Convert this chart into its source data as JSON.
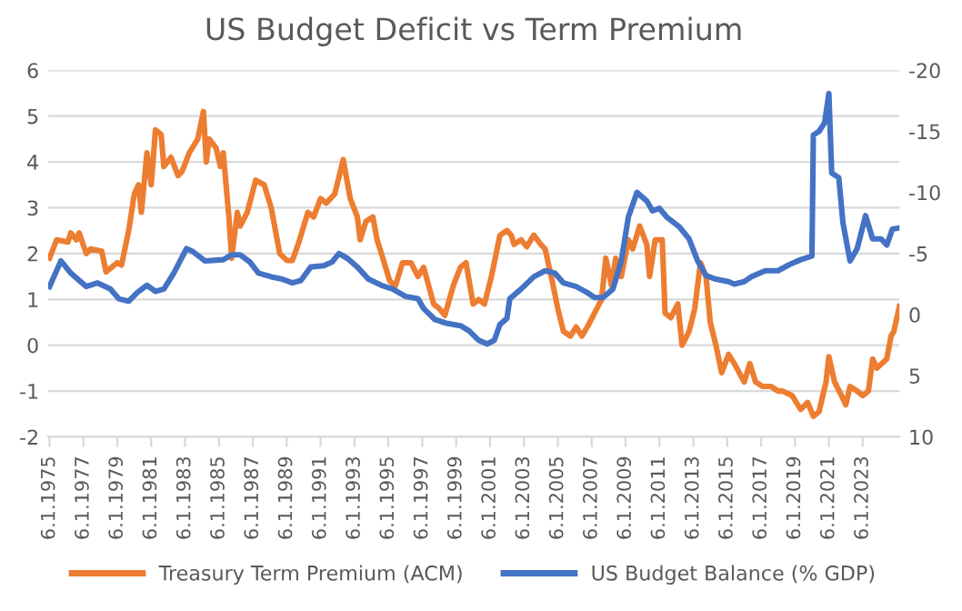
{
  "chart_data": {
    "type": "line",
    "title": "US Budget Deficit vs Term Premium",
    "series": [
      {
        "name": "Treasury Term Premium (ACM)",
        "color": "#ed7d31",
        "x": [
          "1975-06",
          "1975-11",
          "1976-07",
          "1976-09",
          "1977-01",
          "1977-03",
          "1977-08",
          "1977-11",
          "1978-07",
          "1978-10",
          "1979-06",
          "1979-09",
          "1980-02",
          "1980-06",
          "1980-09",
          "1980-11",
          "1981-03",
          "1981-06",
          "1981-09",
          "1982-01",
          "1982-03",
          "1982-08",
          "1983-01",
          "1983-04",
          "1983-09",
          "1984-03",
          "1984-07",
          "1984-09",
          "1984-11",
          "1985-04",
          "1985-07",
          "1985-09",
          "1986-01",
          "1986-03",
          "1986-07",
          "1986-09",
          "1987-02",
          "1987-08",
          "1988-02",
          "1988-07",
          "1989-01",
          "1989-06",
          "1989-10",
          "1990-02",
          "1990-09",
          "1991-01",
          "1991-06",
          "1991-10",
          "1992-04",
          "1992-08",
          "1992-10",
          "1993-03",
          "1993-08",
          "1993-10",
          "1994-02",
          "1994-07",
          "1994-10",
          "1995-02",
          "1995-07",
          "1995-11",
          "1996-04",
          "1996-10",
          "1997-03",
          "1997-07",
          "1998-02",
          "1998-06",
          "1998-10",
          "1999-04",
          "1999-09",
          "2000-01",
          "2000-06",
          "2000-10",
          "2001-02",
          "2001-07",
          "2002-01",
          "2002-06",
          "2002-09",
          "2002-11",
          "2003-04",
          "2003-08",
          "2004-01",
          "2004-06",
          "2004-09",
          "2005-02",
          "2005-06",
          "2005-10",
          "2006-03",
          "2006-07",
          "2006-11",
          "2007-03",
          "2007-08",
          "2008-01",
          "2008-04",
          "2008-08",
          "2008-11",
          "2009-03",
          "2009-08",
          "2009-11",
          "2010-04",
          "2010-09",
          "2010-11",
          "2011-03",
          "2011-08",
          "2011-10",
          "2012-02",
          "2012-07",
          "2012-10",
          "2013-03",
          "2013-07",
          "2013-11",
          "2014-03",
          "2014-06",
          "2014-10",
          "2015-02",
          "2015-07",
          "2015-11",
          "2016-06",
          "2016-10",
          "2017-02",
          "2017-07",
          "2018-01",
          "2018-06",
          "2018-09",
          "2019-04",
          "2019-10",
          "2020-03",
          "2020-07",
          "2020-11",
          "2021-04",
          "2021-06",
          "2021-10",
          "2022-03",
          "2022-06",
          "2022-09",
          "2023-02",
          "2023-06",
          "2023-10",
          "2024-01",
          "2024-04",
          "2024-11",
          "2025-02",
          "2025-04",
          "2025-08"
        ],
        "values": [
          1.9,
          2.3,
          2.25,
          2.45,
          2.3,
          2.45,
          2.0,
          2.1,
          2.05,
          1.6,
          1.8,
          1.75,
          2.5,
          3.3,
          3.5,
          2.9,
          4.2,
          3.5,
          4.7,
          4.6,
          3.9,
          4.1,
          3.7,
          3.8,
          4.2,
          4.5,
          5.1,
          4.0,
          4.5,
          4.3,
          3.9,
          4.2,
          2.8,
          1.9,
          2.9,
          2.6,
          2.9,
          3.6,
          3.5,
          3.0,
          2.0,
          1.85,
          1.85,
          2.2,
          2.9,
          2.8,
          3.2,
          3.1,
          3.3,
          3.8,
          4.05,
          3.2,
          2.8,
          2.3,
          2.7,
          2.8,
          2.3,
          1.9,
          1.4,
          1.3,
          1.8,
          1.8,
          1.5,
          1.7,
          0.9,
          0.8,
          0.65,
          1.3,
          1.7,
          1.8,
          0.9,
          1.0,
          0.9,
          1.5,
          2.4,
          2.5,
          2.4,
          2.2,
          2.3,
          2.15,
          2.4,
          2.2,
          2.1,
          1.4,
          0.8,
          0.3,
          0.2,
          0.4,
          0.2,
          0.4,
          0.7,
          1.0,
          1.9,
          1.3,
          1.9,
          1.5,
          2.3,
          2.1,
          2.6,
          2.2,
          1.5,
          2.3,
          2.3,
          0.7,
          0.6,
          0.9,
          0.0,
          0.3,
          0.8,
          1.8,
          1.5,
          0.5,
          0.0,
          -0.6,
          -0.2,
          -0.4,
          -0.8,
          -0.4,
          -0.8,
          -0.9,
          -0.9,
          -1.0,
          -1.0,
          -1.1,
          -1.4,
          -1.25,
          -1.55,
          -1.45,
          -0.8,
          -0.25,
          -0.8,
          -1.1,
          -1.3,
          -0.9,
          -1.0,
          -1.1,
          -1.0,
          -0.3,
          -0.5,
          -0.3,
          0.2,
          0.3,
          0.85
        ]
      },
      {
        "name": "US Budget Balance (% GDP)",
        "color": "#4472c4",
        "axis": "y2",
        "x": [
          "1975-06",
          "1976-02",
          "1976-09",
          "1977-08",
          "1978-04",
          "1979-01",
          "1979-07",
          "1980-02",
          "1980-08",
          "1981-03",
          "1981-09",
          "1982-03",
          "1982-10",
          "1983-07",
          "1983-11",
          "1984-08",
          "1985-09",
          "1986-03",
          "1986-09",
          "1987-04",
          "1987-10",
          "1988-07",
          "1989-03",
          "1989-10",
          "1990-04",
          "1990-11",
          "1991-08",
          "1992-02",
          "1992-07",
          "1993-01",
          "1993-08",
          "1994-04",
          "1995-01",
          "1995-09",
          "1996-06",
          "1997-03",
          "1997-07",
          "1998-03",
          "1998-11",
          "1999-09",
          "2000-03",
          "2000-10",
          "2001-04",
          "2001-09",
          "2002-01",
          "2002-06",
          "2002-08",
          "2003-04",
          "2004-01",
          "2004-09",
          "2005-04",
          "2005-10",
          "2006-07",
          "2007-03",
          "2007-08",
          "2008-02",
          "2008-09",
          "2009-03",
          "2009-08",
          "2010-02",
          "2010-09",
          "2011-01",
          "2011-06",
          "2011-11",
          "2012-08",
          "2013-03",
          "2013-09",
          "2014-03",
          "2014-10",
          "2015-07",
          "2015-11",
          "2016-06",
          "2016-11",
          "2017-09",
          "2018-06",
          "2019-02",
          "2019-10",
          "2020-06",
          "2020-07",
          "2020-11",
          "2021-03",
          "2021-06",
          "2021-08",
          "2022-01",
          "2022-04",
          "2022-09",
          "2023-02",
          "2023-08",
          "2024-01",
          "2024-07",
          "2024-11",
          "2025-03",
          "2025-08"
        ],
        "values": [
          -2.3,
          -4.4,
          -3.4,
          -2.3,
          -2.6,
          -2.1,
          -1.3,
          -1.1,
          -1.8,
          -2.4,
          -1.9,
          -2.1,
          -3.4,
          -5.4,
          -5.2,
          -4.4,
          -4.5,
          -4.9,
          -4.9,
          -4.3,
          -3.4,
          -3.1,
          -2.9,
          -2.6,
          -2.8,
          -3.9,
          -4.0,
          -4.3,
          -5.0,
          -4.6,
          -3.9,
          -2.9,
          -2.4,
          -2.1,
          -1.5,
          -1.3,
          -0.5,
          0.4,
          0.7,
          0.9,
          1.3,
          2.1,
          2.4,
          2.1,
          0.8,
          0.3,
          -1.3,
          -2.1,
          -3.1,
          -3.6,
          -3.4,
          -2.6,
          -2.3,
          -1.8,
          -1.4,
          -1.4,
          -2.1,
          -4.4,
          -8.0,
          -10.0,
          -9.3,
          -8.5,
          -8.7,
          -8.0,
          -7.2,
          -6.2,
          -4.4,
          -3.2,
          -2.9,
          -2.7,
          -2.5,
          -2.7,
          -3.1,
          -3.6,
          -3.6,
          -4.1,
          -4.5,
          -4.8,
          -14.7,
          -15.0,
          -15.7,
          -18.1,
          -11.6,
          -11.2,
          -7.5,
          -4.4,
          -5.4,
          -8.1,
          -6.2,
          -6.2,
          -5.7,
          -7.0,
          -7.1
        ]
      }
    ],
    "ylim": [
      -2,
      6
    ],
    "yticks": [
      -2,
      -1,
      0,
      1,
      2,
      3,
      4,
      5,
      6
    ],
    "y2lim": [
      10,
      -20
    ],
    "y2ticks": [
      10,
      5,
      0,
      -5,
      -10,
      -15,
      -20
    ],
    "xlim": [
      "1975-05",
      "2025-08"
    ],
    "xticks": [
      {
        "value": "1975-06-01",
        "label": "6.1.1975"
      },
      {
        "value": "1977-06-01",
        "label": "6.1.1977"
      },
      {
        "value": "1979-06-01",
        "label": "6.1.1979"
      },
      {
        "value": "1981-06-01",
        "label": "6.1.1981"
      },
      {
        "value": "1983-06-01",
        "label": "6.1.1983"
      },
      {
        "value": "1985-06-01",
        "label": "6.1.1985"
      },
      {
        "value": "1987-06-01",
        "label": "6.1.1987"
      },
      {
        "value": "1989-06-01",
        "label": "6.1.1989"
      },
      {
        "value": "1991-06-01",
        "label": "6.1.1991"
      },
      {
        "value": "1993-06-01",
        "label": "6.1.1993"
      },
      {
        "value": "1995-06-01",
        "label": "6.1.1995"
      },
      {
        "value": "1997-06-01",
        "label": "6.1.1997"
      },
      {
        "value": "1999-06-01",
        "label": "6.1.1999"
      },
      {
        "value": "2001-06-01",
        "label": "6.1.2001"
      },
      {
        "value": "2003-06-01",
        "label": "6.1.2003"
      },
      {
        "value": "2005-06-01",
        "label": "6.1.2005"
      },
      {
        "value": "2007-06-01",
        "label": "6.1.2007"
      },
      {
        "value": "2009-06-01",
        "label": "6.1.2009"
      },
      {
        "value": "2011-06-01",
        "label": "6.1.2011"
      },
      {
        "value": "2013-06-01",
        "label": "6.1.2013"
      },
      {
        "value": "2015-06-01",
        "label": "6.1.2015"
      },
      {
        "value": "2017-06-01",
        "label": "6.1.2017"
      },
      {
        "value": "2019-06-01",
        "label": "6.1.2019"
      },
      {
        "value": "2021-06-01",
        "label": "6.1.2021"
      },
      {
        "value": "2023-06-01",
        "label": "6.1.2023"
      }
    ],
    "grid": "y",
    "legend": "bottom",
    "marker": "none",
    "line_style": "solid"
  }
}
